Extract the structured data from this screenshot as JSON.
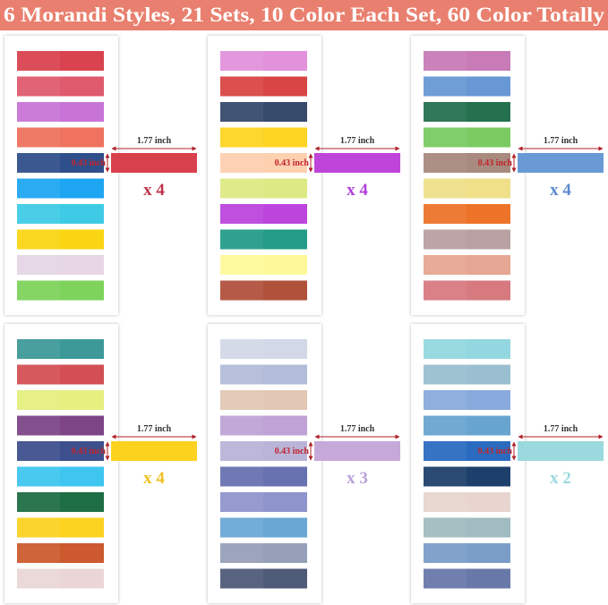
{
  "header": {
    "title": "6 Morandi Styles, 21 Sets, 10 Color Each Set, 60 Color Totally"
  },
  "panels": [
    {
      "colors": [
        "#d9434f",
        "#e05a6e",
        "#c874d6",
        "#ef735e",
        "#2f4f8a",
        "#1ea6f2",
        "#3fcbe6",
        "#fad513",
        "#e6d6e6",
        "#7ed35c"
      ],
      "sample_color": "#d8414c",
      "width_label": "1.77 inch",
      "height_label": "0.43 inch",
      "count": "x 4",
      "count_color": "#c0334a"
    },
    {
      "colors": [
        "#e292db",
        "#d94444",
        "#364a6c",
        "#fdd421",
        "#fdd0b0",
        "#dde984",
        "#bd45de",
        "#229c88",
        "#fdf99a",
        "#b0513c"
      ],
      "sample_color": "#bf45da",
      "width_label": "1.77 inch",
      "height_label": "0.43 inch",
      "count": "x 4",
      "count_color": "#b040d8"
    },
    {
      "colors": [
        "#c87bb7",
        "#6797d4",
        "#24704f",
        "#79cb62",
        "#a88a7e",
        "#f0e08a",
        "#ed7329",
        "#b9a0a2",
        "#e5a693",
        "#d77a80"
      ],
      "sample_color": "#6a9ad6",
      "width_label": "1.77 inch",
      "height_label": "0.43 inch",
      "count": "x 4",
      "count_color": "#5a8ad0"
    },
    {
      "colors": [
        "#3d9998",
        "#d44f53",
        "#e6ef80",
        "#7d4486",
        "#3d4f8d",
        "#3ec6f0",
        "#1e6e43",
        "#fbd320",
        "#cc5a2e",
        "#ead6d6"
      ],
      "sample_color": "#fdd21e",
      "width_label": "1.77 inch",
      "height_label": "0.43 inch",
      "count": "x 4",
      "count_color": "#f0c020"
    },
    {
      "colors": [
        "#d3d8e8",
        "#b3bcd8",
        "#e2c7b5",
        "#bfa3d6",
        "#b9b4d8",
        "#6871b0",
        "#9094cc",
        "#69a8d4",
        "#97a0b8",
        "#4e5b78"
      ],
      "sample_color": "#c6a9d8",
      "width_label": "1.77 inch",
      "height_label": "0.43 inch",
      "count": "x 3",
      "count_color": "#b8a0d8"
    },
    {
      "colors": [
        "#93d8e0",
        "#9abfd0",
        "#88aadc",
        "#68a4d0",
        "#2a6bc0",
        "#1d3f6b",
        "#e8d5d0",
        "#a0bcc0",
        "#7a9ec8",
        "#6878a8"
      ],
      "sample_color": "#9ad9de",
      "width_label": "1.77 inch",
      "height_label": "0.43 inch",
      "count": "x 2",
      "count_color": "#9ad9de"
    }
  ]
}
